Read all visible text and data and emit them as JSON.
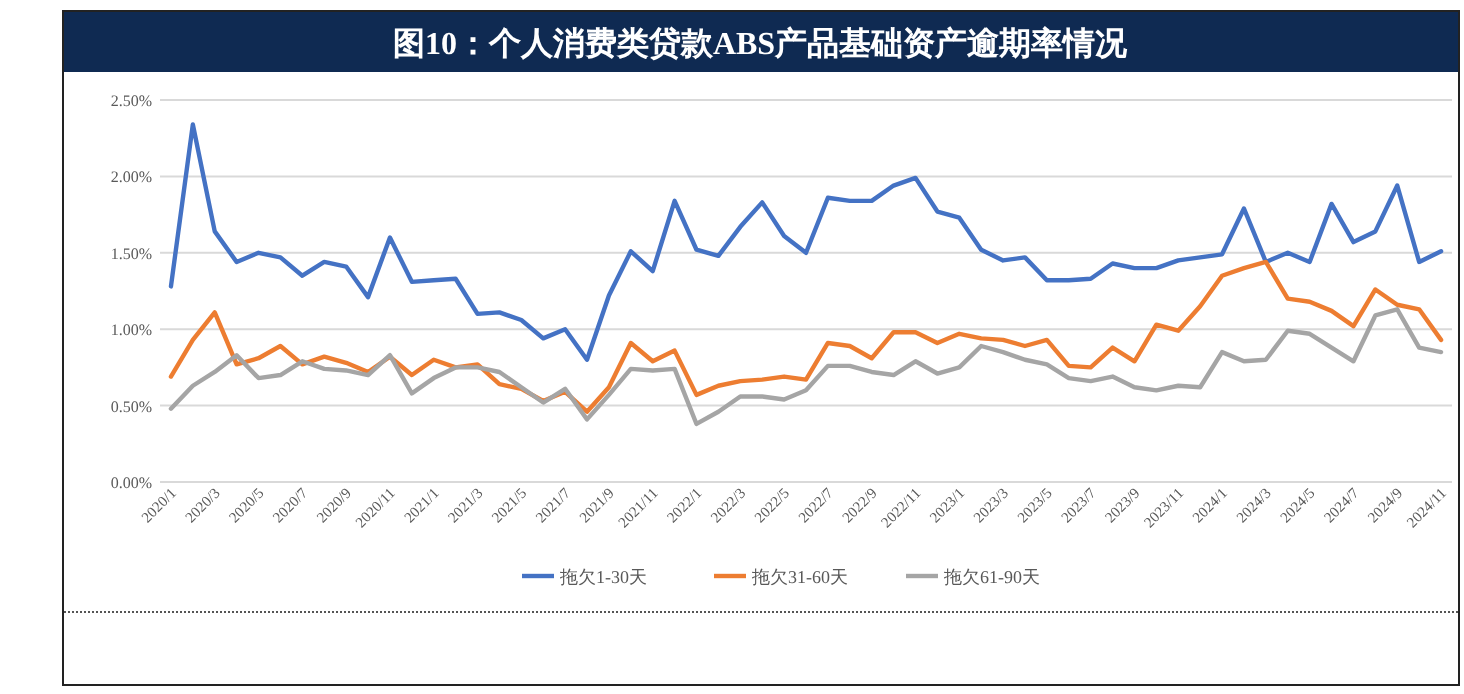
{
  "chart_data": {
    "type": "line",
    "title": "图10：个人消费类贷款ABS产品基础资产逾期率情况",
    "categories": [
      "2020/1",
      null,
      "2020/3",
      null,
      "2020/5",
      null,
      "2020/7",
      null,
      "2020/9",
      null,
      "2020/11",
      null,
      "2021/1",
      null,
      "2021/3",
      null,
      "2021/5",
      null,
      "2021/7",
      null,
      "2021/9",
      null,
      "2021/11",
      null,
      "2022/1",
      null,
      "2022/3",
      null,
      "2022/5",
      null,
      "2022/7",
      null,
      "2022/9",
      null,
      "2022/11",
      null,
      "2023/1",
      null,
      "2023/3",
      null,
      "2023/5",
      null,
      "2023/7",
      null,
      "2023/9",
      null,
      "2023/11",
      null,
      "2024/1",
      null,
      "2024/3",
      null,
      "2024/5",
      null,
      "2024/7",
      null,
      "2024/9",
      null,
      "2024/11"
    ],
    "series": [
      {
        "name": "拖欠1-30天",
        "color": "#4472c4",
        "values": [
          1.28,
          2.34,
          1.64,
          1.44,
          1.5,
          1.47,
          1.35,
          1.44,
          1.41,
          1.21,
          1.6,
          1.31,
          1.32,
          1.33,
          1.1,
          1.11,
          1.06,
          0.94,
          1.0,
          0.8,
          1.22,
          1.51,
          1.38,
          1.84,
          1.52,
          1.48,
          1.67,
          1.83,
          1.61,
          1.5,
          1.86,
          1.84,
          1.84,
          1.94,
          1.99,
          1.77,
          1.73,
          1.52,
          1.45,
          1.47,
          1.32,
          1.32,
          1.33,
          1.43,
          1.4,
          1.4,
          1.45,
          1.47,
          1.49,
          1.79,
          1.44,
          1.5,
          1.44,
          1.82,
          1.57,
          1.64,
          1.94,
          1.44,
          1.51
        ]
      },
      {
        "name": "拖欠31-60天",
        "color": "#ed7d31",
        "values": [
          0.69,
          0.93,
          1.11,
          0.77,
          0.81,
          0.89,
          0.77,
          0.82,
          0.78,
          0.72,
          0.82,
          0.7,
          0.8,
          0.75,
          0.77,
          0.64,
          0.61,
          0.53,
          0.59,
          0.46,
          0.62,
          0.91,
          0.79,
          0.86,
          0.57,
          0.63,
          0.66,
          0.67,
          0.69,
          0.67,
          0.91,
          0.89,
          0.81,
          0.98,
          0.98,
          0.91,
          0.97,
          0.94,
          0.93,
          0.89,
          0.93,
          0.76,
          0.75,
          0.88,
          0.79,
          1.03,
          0.99,
          1.15,
          1.35,
          1.4,
          1.44,
          1.2,
          1.18,
          1.12,
          1.02,
          1.26,
          1.16,
          1.13,
          0.93
        ]
      },
      {
        "name": "拖欠61-90天",
        "color": "#a5a5a5",
        "values": [
          0.48,
          0.63,
          0.72,
          0.83,
          0.68,
          0.7,
          0.79,
          0.74,
          0.73,
          0.7,
          0.83,
          0.58,
          0.68,
          0.75,
          0.75,
          0.72,
          0.62,
          0.52,
          0.61,
          0.41,
          0.57,
          0.74,
          0.73,
          0.74,
          0.38,
          0.46,
          0.56,
          0.56,
          0.54,
          0.6,
          0.76,
          0.76,
          0.72,
          0.7,
          0.79,
          0.71,
          0.75,
          0.89,
          0.85,
          0.8,
          0.77,
          0.68,
          0.66,
          0.69,
          0.62,
          0.6,
          0.63,
          0.62,
          0.85,
          0.79,
          0.8,
          0.99,
          0.97,
          0.88,
          0.79,
          1.09,
          1.13,
          0.88,
          0.85
        ]
      }
    ],
    "ylim": [
      0,
      2.5
    ],
    "yticks": [
      {
        "value": 0,
        "label": "0.00%"
      },
      {
        "value": 0.5,
        "label": "0.50%"
      },
      {
        "value": 1,
        "label": "1.00%"
      },
      {
        "value": 1.5,
        "label": "1.50%"
      },
      {
        "value": 2,
        "label": "2.00%"
      },
      {
        "value": 2.5,
        "label": "2.50%"
      }
    ],
    "grid": "y",
    "legend": "bottom",
    "marker": "none",
    "line_style": "solid"
  }
}
